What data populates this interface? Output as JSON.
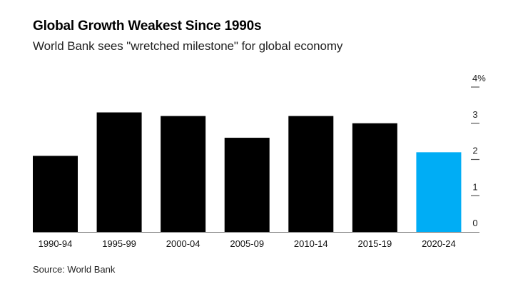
{
  "chart_data": {
    "type": "bar",
    "title": "Global Growth Weakest Since 1990s",
    "subtitle": "World Bank sees \"wretched milestone\" for global economy",
    "xlabel": "",
    "ylabel": "",
    "categories": [
      "1990-94",
      "1995-99",
      "2000-04",
      "2005-09",
      "2010-14",
      "2015-19",
      "2020-24"
    ],
    "values": [
      2.1,
      3.3,
      3.2,
      2.6,
      3.2,
      3.0,
      2.2
    ],
    "colors": [
      "#000000",
      "#000000",
      "#000000",
      "#000000",
      "#000000",
      "#000000",
      "#00adf5"
    ],
    "highlight_category": "2020-24",
    "ylim": [
      0,
      4
    ],
    "yticks": [
      {
        "value": 0,
        "label": "0"
      },
      {
        "value": 1,
        "label": "1"
      },
      {
        "value": 2,
        "label": "2"
      },
      {
        "value": 3,
        "label": "3"
      },
      {
        "value": 4,
        "label": "4%"
      }
    ],
    "y_axis_side": "right",
    "grid": false,
    "source": "Source: World Bank"
  }
}
